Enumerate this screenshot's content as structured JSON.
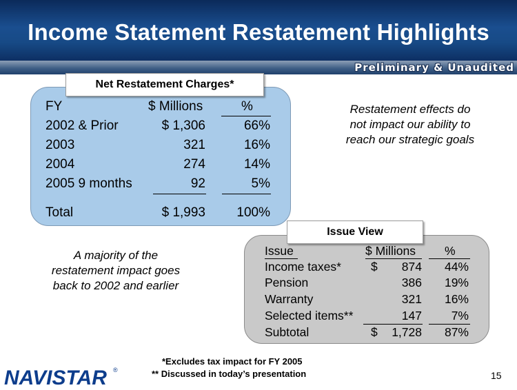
{
  "slide": {
    "title": "Income Statement Restatement Highlights",
    "banner": "Preliminary & Unaudited",
    "page_number": "15"
  },
  "net_charges": {
    "tab_label": "Net Restatement Charges*",
    "headers": [
      "FY",
      "$ Millions",
      "%"
    ],
    "rows": [
      {
        "fy": "2002 & Prior",
        "millions": "$ 1,306",
        "pct": "66%"
      },
      {
        "fy": "2003",
        "millions": "321",
        "pct": "16%"
      },
      {
        "fy": "2004",
        "millions": "274",
        "pct": "14%"
      },
      {
        "fy": "2005 9 months",
        "millions": "92",
        "pct": "5%"
      }
    ],
    "total": {
      "fy": "Total",
      "millions": "$ 1,993",
      "pct": "100%"
    }
  },
  "issue_view": {
    "tab_label": "Issue View",
    "headers": [
      "Issue",
      "$ Millions",
      "%"
    ],
    "rows": [
      {
        "issue": "Income taxes*",
        "dollar": "$",
        "millions": "874",
        "pct": "44%"
      },
      {
        "issue": "Pension",
        "dollar": "",
        "millions": "386",
        "pct": "19%"
      },
      {
        "issue": "Warranty",
        "dollar": "",
        "millions": "321",
        "pct": "16%"
      },
      {
        "issue": "Selected items**",
        "dollar": "",
        "millions": "147",
        "pct": "7%"
      }
    ],
    "subtotal": {
      "issue": "Subtotal",
      "dollar": "$",
      "millions": "1,728",
      "pct": "87%"
    }
  },
  "notes": {
    "right_line1": "Restatement effects do",
    "right_line2": "not impact our ability to",
    "right_line3": "reach our strategic goals",
    "left_line1": "A majority of the",
    "left_line2": "restatement impact goes",
    "left_line3": "back to  2002 and earlier"
  },
  "footnotes": {
    "line1": "*Excludes tax impact for FY 2005",
    "line2": "** Discussed in today’s presentation"
  },
  "logo": {
    "text": "NAVISTAR",
    "mark": "®",
    "color": "#0d3d8c"
  }
}
